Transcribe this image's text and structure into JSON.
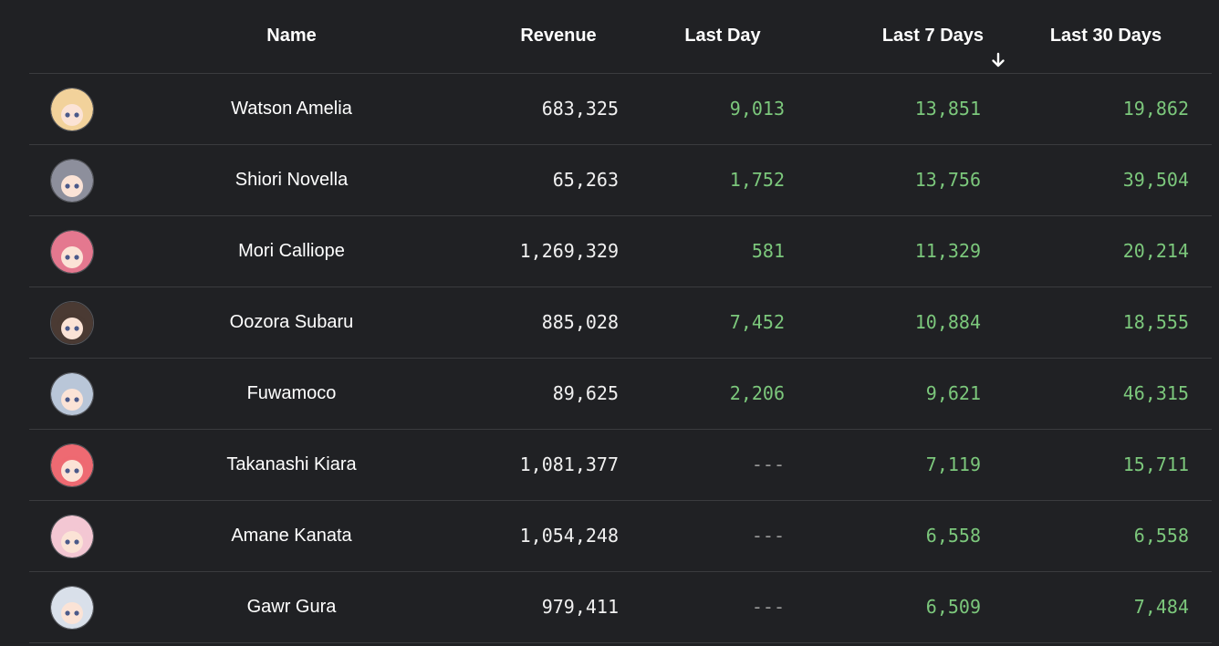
{
  "columns": {
    "name": "Name",
    "revenue": "Revenue",
    "last_day": "Last Day",
    "last_7_days": "Last 7 Days",
    "last_30_days": "Last 30 Days"
  },
  "sort": {
    "column": "last_7_days",
    "direction": "descending",
    "icon": "arrow-down-icon"
  },
  "colors": {
    "background": "#202124",
    "positive": "#7cc87c",
    "text": "#ffffff",
    "divider": "#3a3b3e"
  },
  "rows": [
    {
      "name": "Watson Amelia",
      "revenue": "683,325",
      "last_day": "9,013",
      "last_7_days": "13,851",
      "last_30_days": "19,862",
      "avatar_color": "#f2d29b"
    },
    {
      "name": "Shiori Novella",
      "revenue": "65,263",
      "last_day": "1,752",
      "last_7_days": "13,756",
      "last_30_days": "39,504",
      "avatar_color": "#8d8f9c"
    },
    {
      "name": "Mori Calliope",
      "revenue": "1,269,329",
      "last_day": "581",
      "last_7_days": "11,329",
      "last_30_days": "20,214",
      "avatar_color": "#e4788f"
    },
    {
      "name": "Oozora Subaru",
      "revenue": "885,028",
      "last_day": "7,452",
      "last_7_days": "10,884",
      "last_30_days": "18,555",
      "avatar_color": "#4a3a33"
    },
    {
      "name": "Fuwamoco",
      "revenue": "89,625",
      "last_day": "2,206",
      "last_7_days": "9,621",
      "last_30_days": "46,315",
      "avatar_color": "#b9c6d8"
    },
    {
      "name": "Takanashi Kiara",
      "revenue": "1,081,377",
      "last_day": "---",
      "last_7_days": "7,119",
      "last_30_days": "15,711",
      "avatar_color": "#ee6a72"
    },
    {
      "name": "Amane Kanata",
      "revenue": "1,054,248",
      "last_day": "---",
      "last_7_days": "6,558",
      "last_30_days": "6,558",
      "avatar_color": "#f3c7d3"
    },
    {
      "name": "Gawr Gura",
      "revenue": "979,411",
      "last_day": "---",
      "last_7_days": "6,509",
      "last_30_days": "7,484",
      "avatar_color": "#d9e0ea"
    }
  ]
}
